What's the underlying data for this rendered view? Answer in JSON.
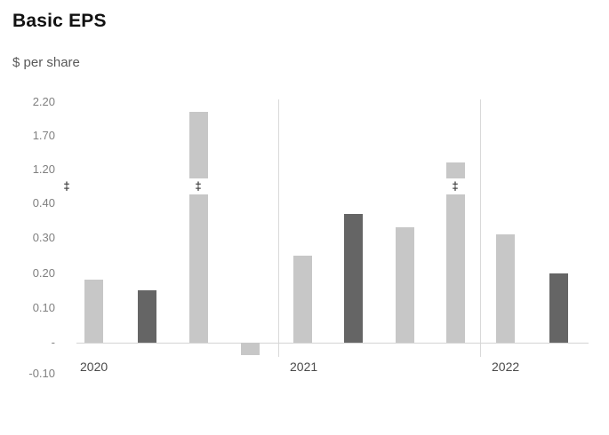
{
  "chart": {
    "title": "Basic EPS",
    "subtitle": "$ per share"
  },
  "chart_data": {
    "type": "bar",
    "title": "Basic EPS",
    "ylabel": "$ per share",
    "xlabel": "",
    "ylim": [
      -0.1,
      2.2
    ],
    "grid": false,
    "legend": "none",
    "axis_break": {
      "between": [
        0.4,
        1.2
      ],
      "symbol": "‡"
    },
    "y_ticks": [
      {
        "value": 2.2,
        "label": "2.20"
      },
      {
        "value": 1.7,
        "label": "1.70"
      },
      {
        "value": 1.2,
        "label": "1.20"
      },
      {
        "value": 0.4,
        "label": "0.40"
      },
      {
        "value": 0.3,
        "label": "0.30"
      },
      {
        "value": 0.2,
        "label": "0.20"
      },
      {
        "value": 0.1,
        "label": "0.10"
      },
      {
        "value": 0,
        "label": "-"
      },
      {
        "value": -0.1,
        "label": "-0.10"
      }
    ],
    "groups": [
      {
        "label": "2020",
        "bars": [
          {
            "value": 0.18,
            "shade": "light",
            "break": false
          },
          {
            "value": 0.15,
            "shade": "dark",
            "break": false
          },
          {
            "value": 2.05,
            "shade": "light",
            "break": true
          },
          {
            "value": -0.04,
            "shade": "light",
            "break": false
          }
        ]
      },
      {
        "label": "2021",
        "bars": [
          {
            "value": 0.25,
            "shade": "light",
            "break": false
          },
          {
            "value": 0.37,
            "shade": "dark",
            "break": false
          },
          {
            "value": 0.33,
            "shade": "light",
            "break": false
          },
          {
            "value": 1.3,
            "shade": "light",
            "break": true
          }
        ]
      },
      {
        "label": "2022",
        "bars": [
          {
            "value": 0.31,
            "shade": "light",
            "break": false
          },
          {
            "value": 0.2,
            "shade": "dark",
            "break": false
          }
        ]
      }
    ],
    "colors": {
      "light": "#c7c7c7",
      "dark": "#656565"
    }
  }
}
